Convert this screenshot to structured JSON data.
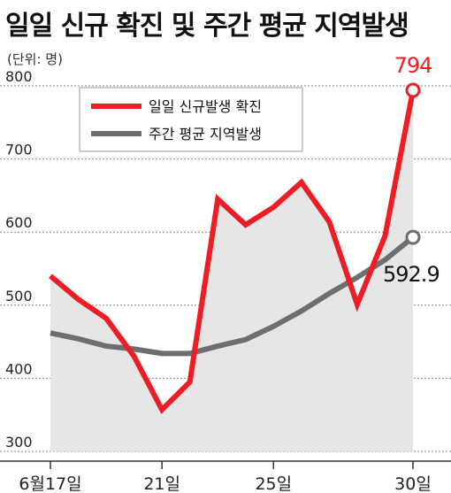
{
  "chart_data": {
    "type": "line",
    "title": "일일 신규 확진 및 주간 평균 지역발생",
    "unit_label": "(단위: 명)",
    "ylim": [
      300,
      800
    ],
    "yticks": [
      300,
      400,
      500,
      600,
      700,
      800
    ],
    "x_tick_labels": [
      {
        "index": 0,
        "label": "6월17일"
      },
      {
        "index": 4,
        "label": "21일"
      },
      {
        "index": 8,
        "label": "25일"
      },
      {
        "index": 13,
        "label": "30일"
      }
    ],
    "x": [
      "6월17일",
      "6월18일",
      "6월19일",
      "6월20일",
      "6월21일",
      "6월22일",
      "6월23일",
      "6월24일",
      "6월25일",
      "6월26일",
      "6월27일",
      "6월28일",
      "6월29일",
      "6월30일"
    ],
    "series": [
      {
        "name": "일일 신규발생 확진",
        "color": "#ee1c25",
        "values": [
          540,
          508,
          482,
          430,
          357,
          395,
          645,
          610,
          634,
          668,
          614,
          501,
          595,
          794
        ],
        "end_label": "794"
      },
      {
        "name": "주간 평균 지역발생",
        "color": "#6d6e71",
        "values": [
          462,
          454,
          444,
          440,
          434,
          434,
          444,
          453,
          471,
          492,
          516,
          538,
          562,
          592.9
        ],
        "end_label": "592.9"
      }
    ],
    "legend_position": "top-left",
    "grid": true
  }
}
